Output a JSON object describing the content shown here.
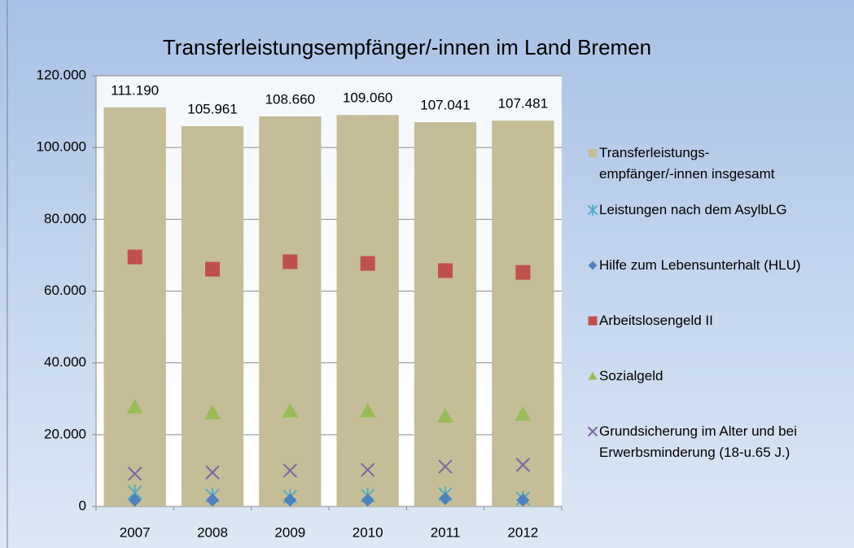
{
  "chart_data": {
    "type": "bar",
    "title": "Transferleistungsempfänger/-innen im Land Bremen",
    "categories": [
      "2007",
      "2008",
      "2009",
      "2010",
      "2011",
      "2012"
    ],
    "series": [
      {
        "name": "Transferleistungs-\nempfänger/-innen insgesamt",
        "marker": "bar",
        "color": "#c4bd97",
        "values": [
          111190,
          105961,
          108660,
          109060,
          107041,
          107481
        ],
        "value_labels": [
          "111.190",
          "105.961",
          "108.660",
          "109.060",
          "107.041",
          "107.481"
        ]
      },
      {
        "name": "Leistungen nach dem AsylbLG",
        "marker": "star",
        "color": "#4bacc6",
        "values": [
          3900,
          3000,
          2700,
          3000,
          3400,
          2200
        ]
      },
      {
        "name": "Hilfe zum Lebensunterhalt (HLU)",
        "marker": "diamond",
        "color": "#4f81bd",
        "values": [
          1800,
          1800,
          1800,
          1800,
          2200,
          1800
        ]
      },
      {
        "name": "Arbeitslosengeld II",
        "marker": "square",
        "color": "#c0504d",
        "values": [
          69500,
          66100,
          68200,
          67700,
          65700,
          65200
        ]
      },
      {
        "name": "Sozialgeld",
        "marker": "triangle",
        "color": "#9bbb59",
        "values": [
          27700,
          26100,
          26600,
          26600,
          25200,
          25700
        ]
      },
      {
        "name": "Grundsicherung im Alter und bei\nErwerbsminderung (18-u.65 J.)",
        "marker": "x",
        "color": "#8064a2",
        "values": [
          9100,
          9500,
          10000,
          10200,
          11100,
          11600
        ]
      }
    ],
    "ylim": [
      0,
      120000
    ],
    "yticks": [
      0,
      {
        "value": 20000,
        "label": "20.000"
      },
      {
        "value": 40000,
        "label": "40.000"
      },
      {
        "value": 60000,
        "label": "60.000"
      },
      {
        "value": 80000,
        "label": "80.000"
      },
      {
        "value": 100000,
        "label": "100.000"
      },
      {
        "value": 120000,
        "label": "120.000"
      }
    ],
    "grid": true,
    "legend": "right"
  }
}
